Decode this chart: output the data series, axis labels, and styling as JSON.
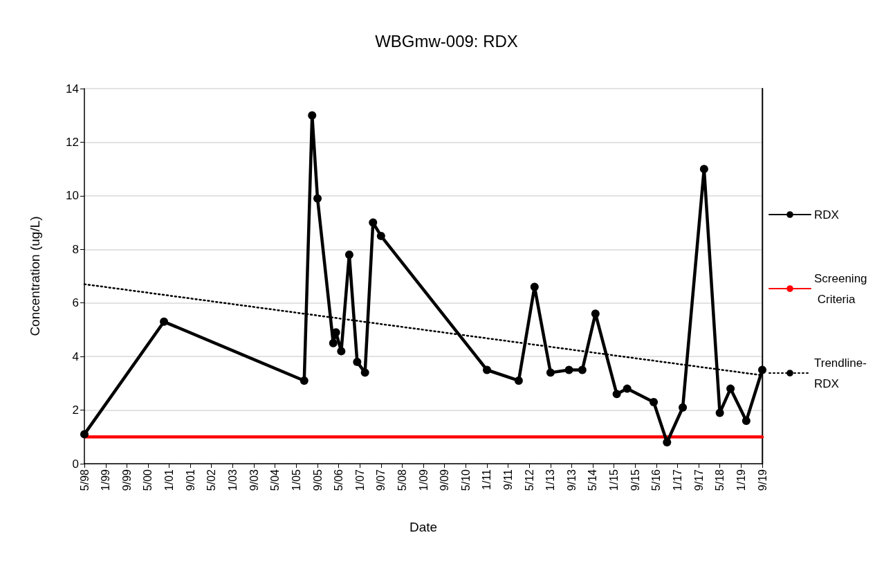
{
  "chart_data": {
    "type": "line",
    "title": "WBGmw-009: RDX",
    "xlabel": "Date",
    "ylabel": "Concentration (ug/L)",
    "series": [
      {
        "name": "RDX",
        "color": "#000000",
        "marker": "circle",
        "line_style": "solid",
        "x": [
          "1998-05",
          "2000-11",
          "2005-04",
          "2005-07",
          "2005-09",
          "2006-03",
          "2006-04",
          "2006-06",
          "2006-09",
          "2006-12",
          "2007-03",
          "2007-06",
          "2007-09",
          "2011-01",
          "2012-01",
          "2012-07",
          "2013-01",
          "2013-08",
          "2014-01",
          "2014-06",
          "2015-02",
          "2015-06",
          "2016-04",
          "2016-09",
          "2017-03",
          "2017-11",
          "2018-05",
          "2018-09",
          "2019-03",
          "2019-09"
        ],
        "values": [
          1.1,
          5.3,
          3.1,
          13.0,
          9.9,
          4.5,
          4.9,
          4.2,
          7.8,
          3.8,
          3.4,
          9.0,
          8.5,
          3.5,
          3.1,
          6.6,
          3.4,
          3.5,
          3.5,
          5.6,
          2.6,
          2.8,
          2.3,
          0.8,
          2.1,
          11.0,
          1.9,
          2.8,
          1.6,
          3.5
        ]
      },
      {
        "name": "Screening Criteria",
        "color": "#ff0000",
        "marker": "none",
        "line_style": "solid",
        "x": [
          "1998-05",
          "2019-09"
        ],
        "values": [
          1.0,
          1.0
        ]
      },
      {
        "name": "Trendline-RDX",
        "color": "#000000",
        "marker": "none",
        "line_style": "dotted",
        "x": [
          "1998-05",
          "2019-09"
        ],
        "values": [
          6.7,
          3.3
        ]
      }
    ],
    "xlim": [
      "1998-05",
      "2019-09"
    ],
    "xticks": [
      {
        "value": "1998-05",
        "label": "5/98"
      },
      {
        "value": "1999-01",
        "label": "1/99"
      },
      {
        "value": "1999-09",
        "label": "9/99"
      },
      {
        "value": "2000-05",
        "label": "5/00"
      },
      {
        "value": "2001-01",
        "label": "1/01"
      },
      {
        "value": "2001-09",
        "label": "9/01"
      },
      {
        "value": "2002-05",
        "label": "5/02"
      },
      {
        "value": "2003-01",
        "label": "1/03"
      },
      {
        "value": "2003-09",
        "label": "9/03"
      },
      {
        "value": "2004-05",
        "label": "5/04"
      },
      {
        "value": "2005-01",
        "label": "1/05"
      },
      {
        "value": "2005-09",
        "label": "9/05"
      },
      {
        "value": "2006-05",
        "label": "5/06"
      },
      {
        "value": "2007-01",
        "label": "1/07"
      },
      {
        "value": "2007-09",
        "label": "9/07"
      },
      {
        "value": "2008-05",
        "label": "5/08"
      },
      {
        "value": "2009-01",
        "label": "1/09"
      },
      {
        "value": "2009-09",
        "label": "9/09"
      },
      {
        "value": "2010-05",
        "label": "5/10"
      },
      {
        "value": "2011-01",
        "label": "1/11"
      },
      {
        "value": "2011-09",
        "label": "9/11"
      },
      {
        "value": "2012-05",
        "label": "5/12"
      },
      {
        "value": "2013-01",
        "label": "1/13"
      },
      {
        "value": "2013-09",
        "label": "9/13"
      },
      {
        "value": "2014-05",
        "label": "5/14"
      },
      {
        "value": "2015-01",
        "label": "1/15"
      },
      {
        "value": "2015-09",
        "label": "9/15"
      },
      {
        "value": "2016-05",
        "label": "5/16"
      },
      {
        "value": "2017-01",
        "label": "1/17"
      },
      {
        "value": "2017-09",
        "label": "9/17"
      },
      {
        "value": "2018-05",
        "label": "5/18"
      },
      {
        "value": "2019-01",
        "label": "1/19"
      },
      {
        "value": "2019-09",
        "label": "9/19"
      }
    ],
    "ylim": [
      0,
      14
    ],
    "yticks": [
      0,
      2,
      4,
      6,
      8,
      10,
      12,
      14
    ],
    "grid": "y",
    "legend": "right"
  }
}
